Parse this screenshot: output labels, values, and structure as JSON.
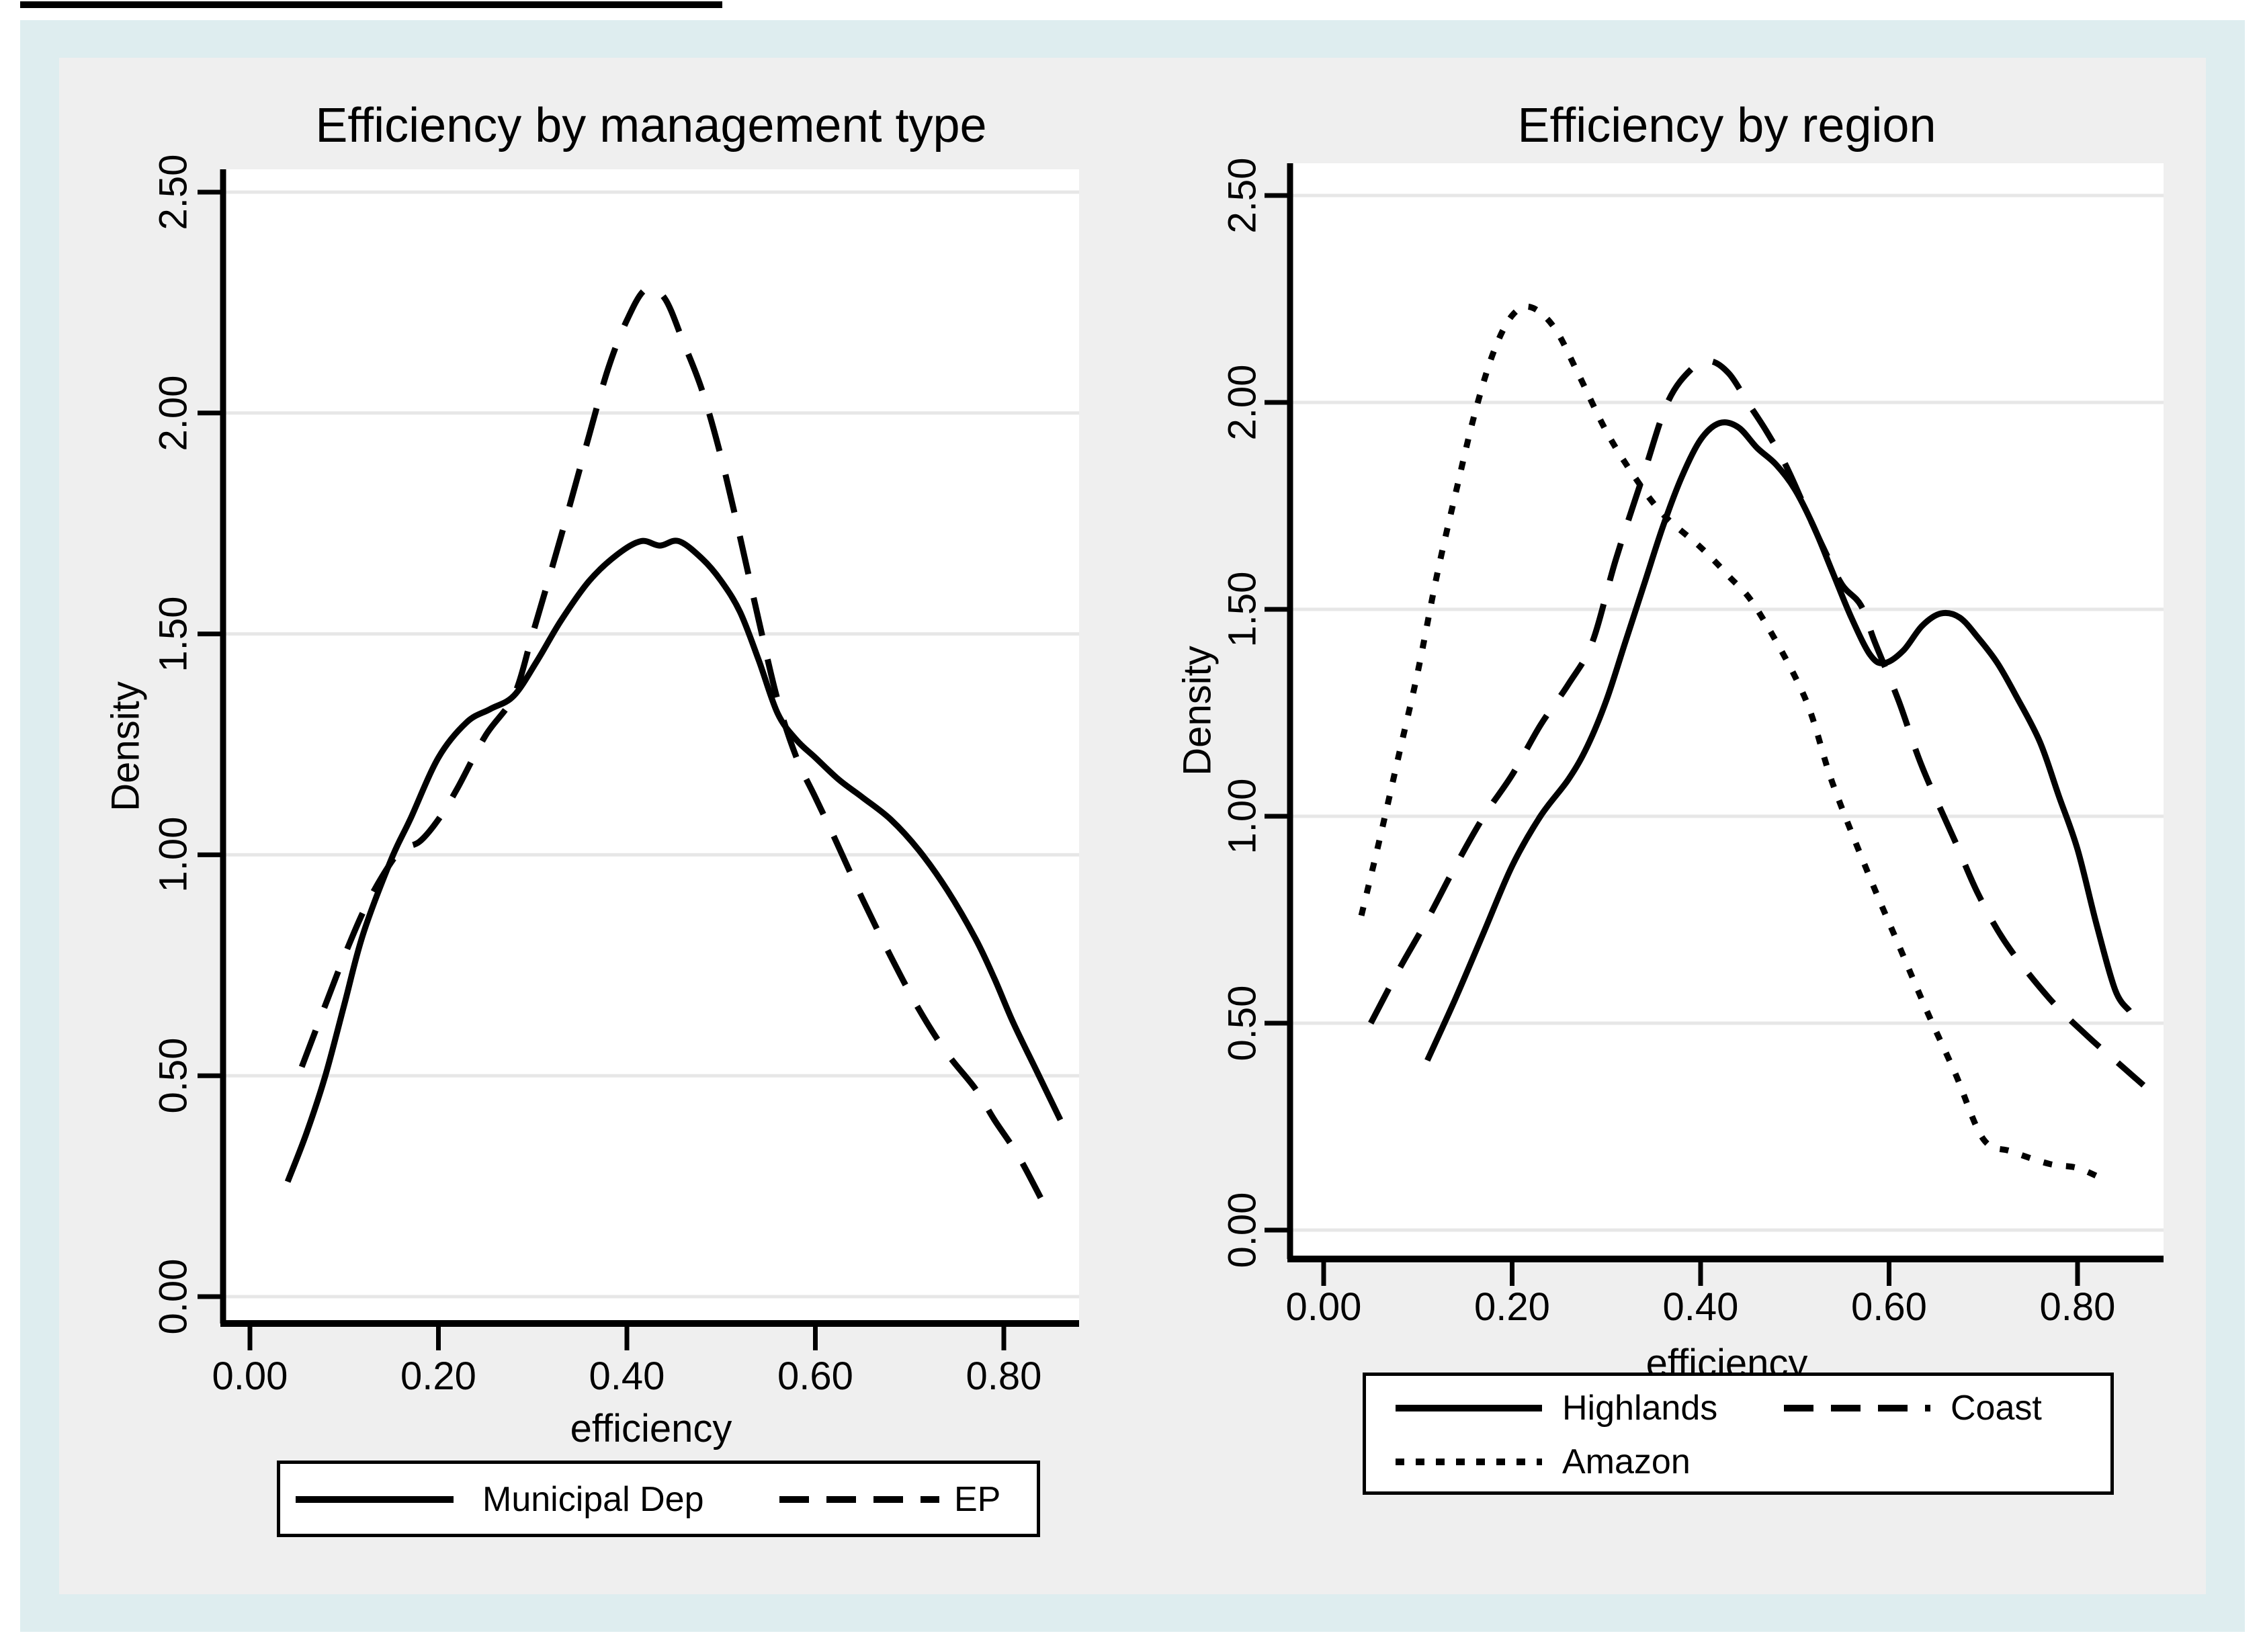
{
  "page": {
    "background": "#ffffff",
    "frame_color": "#deedef",
    "region_color": "#efefef",
    "plot_bg": "#ffffff",
    "gridline_color": "#e7e7e7",
    "line_color": "#000000"
  },
  "chart_data": [
    {
      "type": "line",
      "title": "Efficiency by management type",
      "xlabel": "efficiency",
      "ylabel": "Density",
      "xlim": [
        0,
        0.887
      ],
      "ylim": [
        0,
        2.55
      ],
      "grid": true,
      "legend_position": "below",
      "xticks": {
        "values": [
          0,
          0.2,
          0.4,
          0.6,
          0.8
        ],
        "labels": [
          "0.00",
          "0.20",
          "0.40",
          "0.60",
          "0.80"
        ]
      },
      "yticks": {
        "values": [
          0,
          0.5,
          1,
          1.5,
          2,
          2.5
        ],
        "labels": [
          "0.00",
          "0.50",
          "1.00",
          "1.50",
          "2.00",
          "2.50"
        ]
      },
      "series": [
        {
          "name": "Municipal Dep",
          "style": "solid",
          "points": [
            [
              0.04,
              0.26
            ],
            [
              0.06,
              0.37
            ],
            [
              0.08,
              0.5
            ],
            [
              0.1,
              0.66
            ],
            [
              0.12,
              0.82
            ],
            [
              0.15,
              0.99
            ],
            [
              0.17,
              1.08
            ],
            [
              0.2,
              1.22
            ],
            [
              0.23,
              1.3
            ],
            [
              0.255,
              1.33
            ],
            [
              0.28,
              1.36
            ],
            [
              0.305,
              1.44
            ],
            [
              0.33,
              1.53
            ],
            [
              0.36,
              1.62
            ],
            [
              0.39,
              1.68
            ],
            [
              0.415,
              1.71
            ],
            [
              0.435,
              1.7
            ],
            [
              0.455,
              1.71
            ],
            [
              0.48,
              1.67
            ],
            [
              0.5,
              1.62
            ],
            [
              0.52,
              1.55
            ],
            [
              0.54,
              1.44
            ],
            [
              0.56,
              1.32
            ],
            [
              0.58,
              1.26
            ],
            [
              0.6,
              1.22
            ],
            [
              0.625,
              1.17
            ],
            [
              0.65,
              1.13
            ],
            [
              0.68,
              1.08
            ],
            [
              0.71,
              1.01
            ],
            [
              0.74,
              0.92
            ],
            [
              0.77,
              0.81
            ],
            [
              0.79,
              0.72
            ],
            [
              0.81,
              0.62
            ],
            [
              0.835,
              0.51
            ],
            [
              0.86,
              0.4
            ]
          ]
        },
        {
          "name": "EP",
          "style": "dashed",
          "points": [
            [
              0.055,
              0.52
            ],
            [
              0.08,
              0.66
            ],
            [
              0.1,
              0.77
            ],
            [
              0.12,
              0.87
            ],
            [
              0.14,
              0.95
            ],
            [
              0.16,
              1.01
            ],
            [
              0.18,
              1.03
            ],
            [
              0.2,
              1.08
            ],
            [
              0.22,
              1.15
            ],
            [
              0.25,
              1.27
            ],
            [
              0.28,
              1.36
            ],
            [
              0.3,
              1.5
            ],
            [
              0.33,
              1.72
            ],
            [
              0.36,
              1.95
            ],
            [
              0.38,
              2.1
            ],
            [
              0.4,
              2.21
            ],
            [
              0.42,
              2.28
            ],
            [
              0.44,
              2.26
            ],
            [
              0.46,
              2.16
            ],
            [
              0.48,
              2.05
            ],
            [
              0.5,
              1.9
            ],
            [
              0.52,
              1.72
            ],
            [
              0.54,
              1.53
            ],
            [
              0.56,
              1.35
            ],
            [
              0.58,
              1.22
            ],
            [
              0.6,
              1.13
            ],
            [
              0.62,
              1.04
            ],
            [
              0.65,
              0.9
            ],
            [
              0.68,
              0.77
            ],
            [
              0.71,
              0.65
            ],
            [
              0.74,
              0.55
            ],
            [
              0.77,
              0.47
            ],
            [
              0.79,
              0.4
            ],
            [
              0.815,
              0.32
            ],
            [
              0.84,
              0.22
            ]
          ]
        }
      ]
    },
    {
      "type": "line",
      "title": "Efficiency by region",
      "xlabel": "efficiency",
      "ylabel": "Density",
      "xlim": [
        0,
        0.891
      ],
      "ylim": [
        0,
        2.58
      ],
      "grid": true,
      "legend_position": "below",
      "xticks": {
        "values": [
          0,
          0.2,
          0.4,
          0.6,
          0.8
        ],
        "labels": [
          "0.00",
          "0.20",
          "0.40",
          "0.60",
          "0.80"
        ]
      },
      "yticks": {
        "values": [
          0,
          0.5,
          1,
          1.5,
          2,
          2.5
        ],
        "labels": [
          "0.00",
          "0.50",
          "1.00",
          "1.50",
          "2.00",
          "2.50"
        ]
      },
      "series": [
        {
          "name": "Highlands",
          "style": "solid",
          "points": [
            [
              0.11,
              0.41
            ],
            [
              0.14,
              0.56
            ],
            [
              0.17,
              0.72
            ],
            [
              0.2,
              0.88
            ],
            [
              0.23,
              1.0
            ],
            [
              0.26,
              1.09
            ],
            [
              0.28,
              1.17
            ],
            [
              0.3,
              1.28
            ],
            [
              0.32,
              1.42
            ],
            [
              0.34,
              1.56
            ],
            [
              0.36,
              1.7
            ],
            [
              0.38,
              1.82
            ],
            [
              0.4,
              1.91
            ],
            [
              0.42,
              1.95
            ],
            [
              0.44,
              1.94
            ],
            [
              0.46,
              1.89
            ],
            [
              0.48,
              1.85
            ],
            [
              0.5,
              1.79
            ],
            [
              0.52,
              1.7
            ],
            [
              0.54,
              1.59
            ],
            [
              0.56,
              1.48
            ],
            [
              0.58,
              1.39
            ],
            [
              0.595,
              1.37
            ],
            [
              0.615,
              1.4
            ],
            [
              0.635,
              1.46
            ],
            [
              0.655,
              1.49
            ],
            [
              0.675,
              1.48
            ],
            [
              0.695,
              1.43
            ],
            [
              0.715,
              1.37
            ],
            [
              0.735,
              1.29
            ],
            [
              0.76,
              1.18
            ],
            [
              0.78,
              1.05
            ],
            [
              0.8,
              0.92
            ],
            [
              0.82,
              0.74
            ],
            [
              0.84,
              0.58
            ],
            [
              0.855,
              0.53
            ]
          ]
        },
        {
          "name": "Coast",
          "style": "dashed",
          "points": [
            [
              0.05,
              0.5
            ],
            [
              0.08,
              0.63
            ],
            [
              0.11,
              0.75
            ],
            [
              0.14,
              0.88
            ],
            [
              0.17,
              1.0
            ],
            [
              0.2,
              1.1
            ],
            [
              0.23,
              1.22
            ],
            [
              0.26,
              1.32
            ],
            [
              0.285,
              1.42
            ],
            [
              0.31,
              1.62
            ],
            [
              0.34,
              1.83
            ],
            [
              0.365,
              2.0
            ],
            [
              0.39,
              2.08
            ],
            [
              0.41,
              2.1
            ],
            [
              0.43,
              2.07
            ],
            [
              0.45,
              2.0
            ],
            [
              0.47,
              1.93
            ],
            [
              0.49,
              1.85
            ],
            [
              0.51,
              1.75
            ],
            [
              0.53,
              1.65
            ],
            [
              0.55,
              1.56
            ],
            [
              0.57,
              1.51
            ],
            [
              0.585,
              1.42
            ],
            [
              0.61,
              1.28
            ],
            [
              0.635,
              1.12
            ],
            [
              0.67,
              0.94
            ],
            [
              0.695,
              0.81
            ],
            [
              0.725,
              0.69
            ],
            [
              0.77,
              0.56
            ],
            [
              0.81,
              0.47
            ],
            [
              0.84,
              0.41
            ],
            [
              0.87,
              0.35
            ]
          ]
        },
        {
          "name": "Amazon",
          "style": "dotted",
          "points": [
            [
              0.04,
              0.76
            ],
            [
              0.06,
              0.95
            ],
            [
              0.08,
              1.15
            ],
            [
              0.1,
              1.35
            ],
            [
              0.12,
              1.58
            ],
            [
              0.14,
              1.78
            ],
            [
              0.16,
              1.97
            ],
            [
              0.18,
              2.12
            ],
            [
              0.2,
              2.21
            ],
            [
              0.22,
              2.23
            ],
            [
              0.245,
              2.18
            ],
            [
              0.27,
              2.07
            ],
            [
              0.3,
              1.93
            ],
            [
              0.33,
              1.82
            ],
            [
              0.36,
              1.73
            ],
            [
              0.4,
              1.65
            ],
            [
              0.43,
              1.58
            ],
            [
              0.46,
              1.5
            ],
            [
              0.51,
              1.29
            ],
            [
              0.54,
              1.08
            ],
            [
              0.58,
              0.85
            ],
            [
              0.61,
              0.69
            ],
            [
              0.64,
              0.53
            ],
            [
              0.67,
              0.38
            ],
            [
              0.7,
              0.22
            ],
            [
              0.73,
              0.19
            ],
            [
              0.77,
              0.16
            ],
            [
              0.8,
              0.15
            ],
            [
              0.83,
              0.12
            ]
          ]
        }
      ]
    }
  ]
}
